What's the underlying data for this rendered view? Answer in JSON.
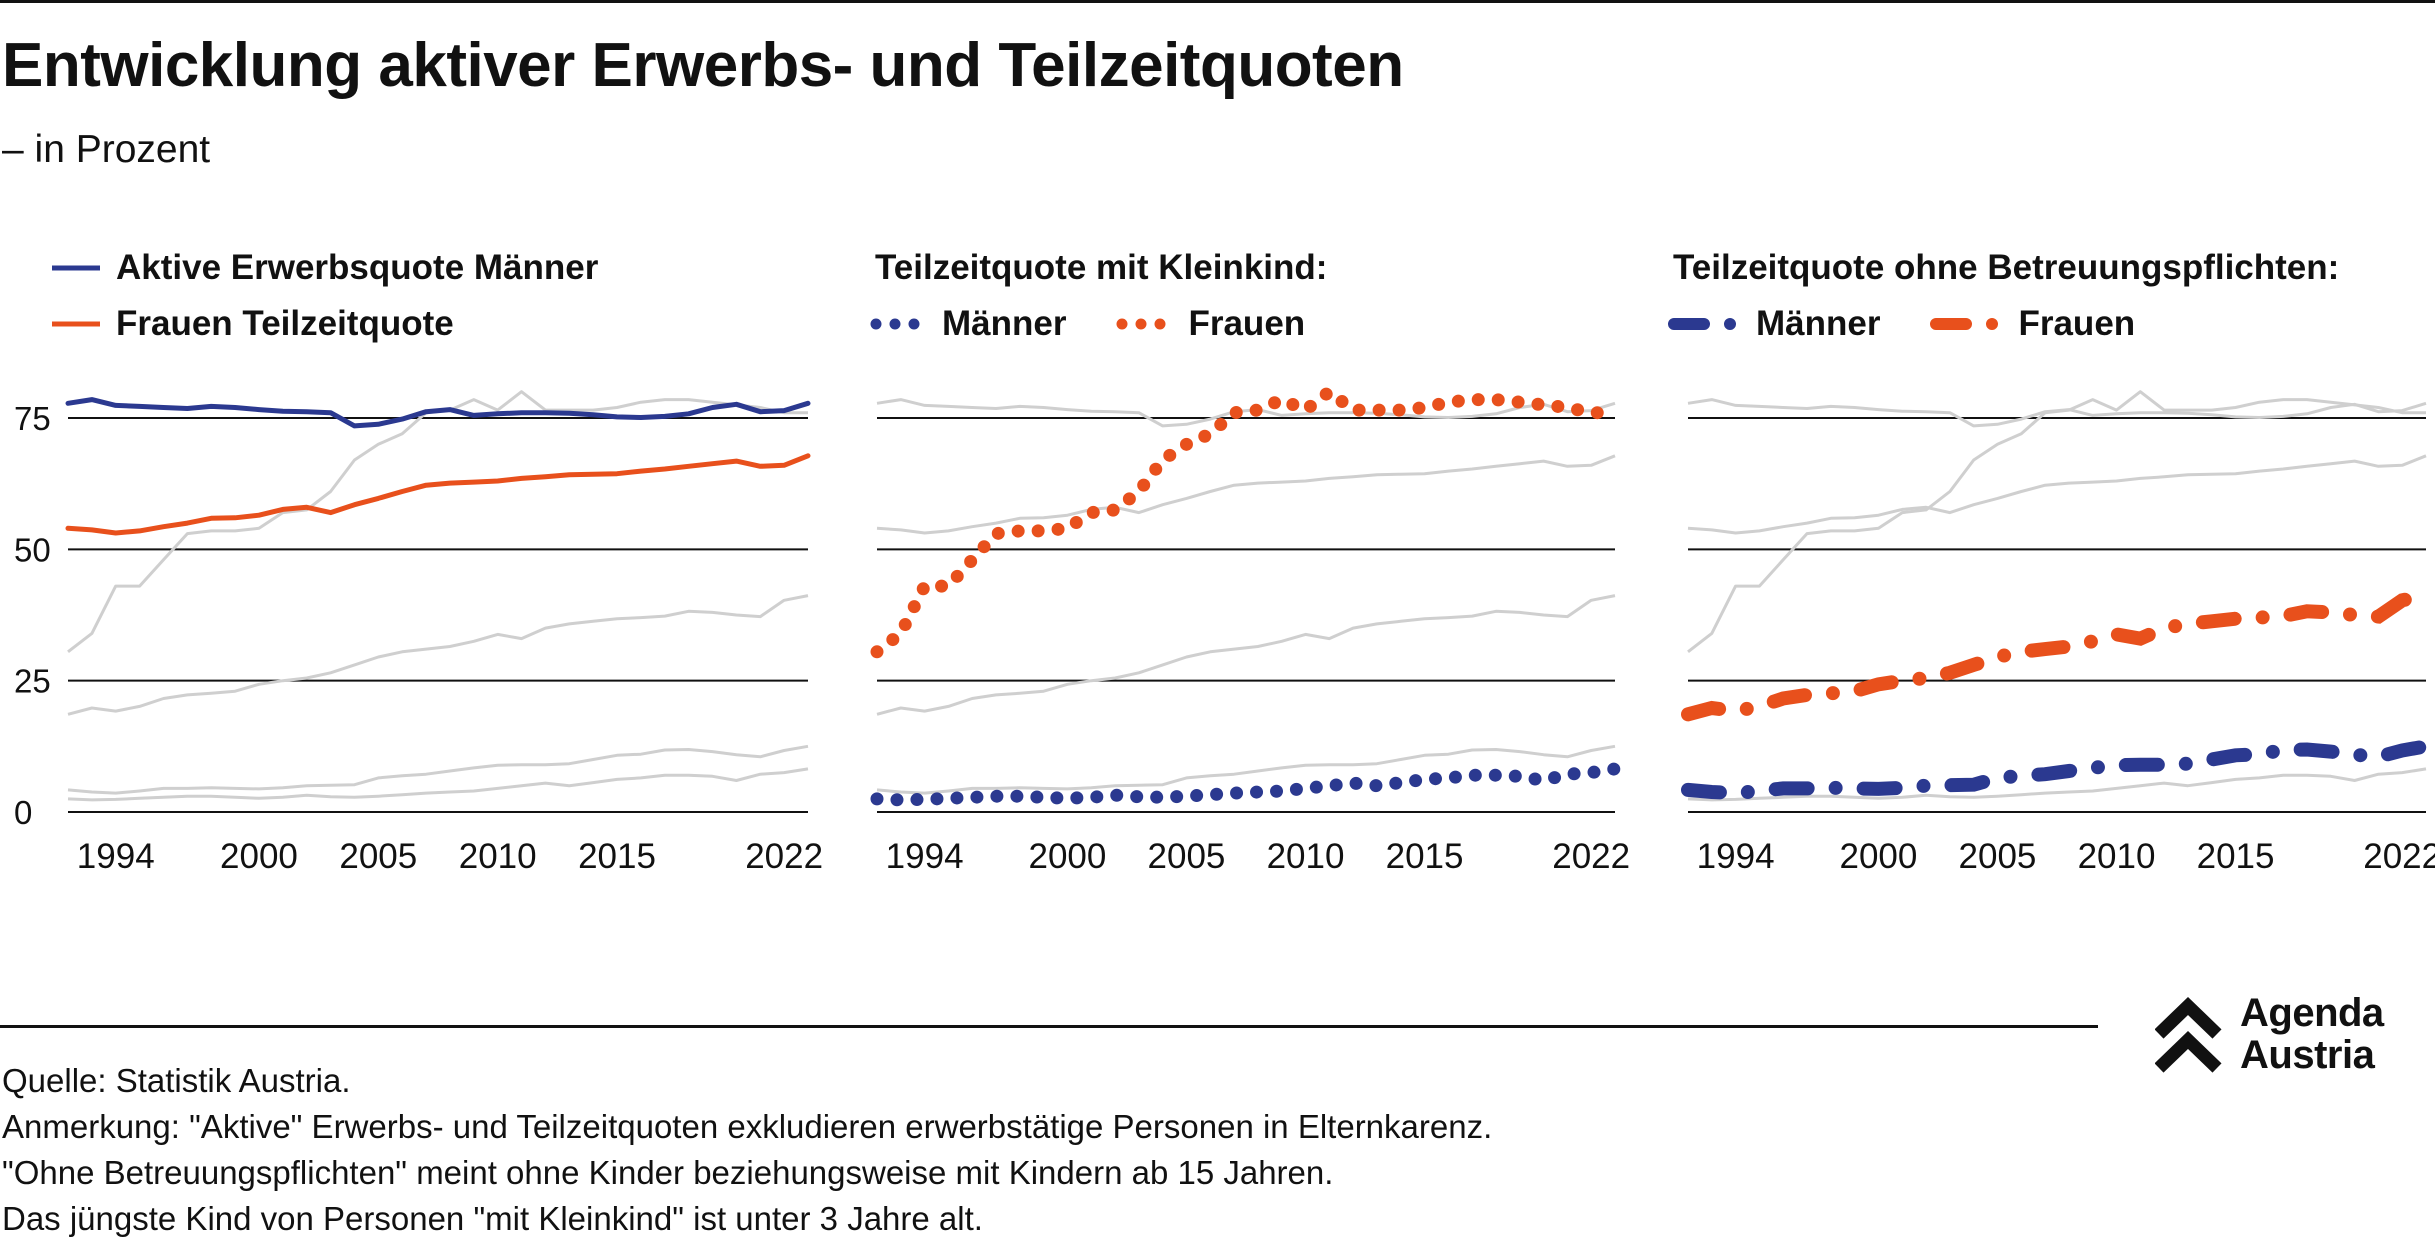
{
  "title": "Entwicklung aktiver Erwerbs- und Teilzeitquoten",
  "subtitle": "– in Prozent",
  "colors": {
    "blue": "#2b3990",
    "orange": "#e8501c",
    "grey": "#cfcfcf",
    "black": "#111111"
  },
  "panels": [
    {
      "legend": {
        "line1": "Aktive Erwerbsquote Männer",
        "line2": "Frauen Teilzeitquote"
      }
    },
    {
      "legend": {
        "heading": "Teilzeitquote mit Kleinkind:",
        "men": "Männer",
        "women": "Frauen"
      }
    },
    {
      "legend": {
        "heading": "Teilzeitquote ohne Betreuungspflichten:",
        "men": "Männer",
        "women": "Frauen"
      }
    }
  ],
  "chart_data": {
    "type": "line",
    "ylim": [
      0,
      80
    ],
    "yticks": [
      0,
      25,
      50,
      75
    ],
    "xticks": [
      1994,
      2000,
      2005,
      2010,
      2015,
      2022
    ],
    "xrange": [
      1992,
      2023
    ],
    "series": [
      {
        "name": "Aktive Erwerbsquote Männer",
        "values": [
          [
            1992,
            77.8
          ],
          [
            1993,
            78.5
          ],
          [
            1994,
            77.4
          ],
          [
            1995,
            77.2
          ],
          [
            1996,
            77
          ],
          [
            1997,
            76.8
          ],
          [
            1998,
            77.2
          ],
          [
            1999,
            77
          ],
          [
            2000,
            76.6
          ],
          [
            2001,
            76.3
          ],
          [
            2002,
            76.2
          ],
          [
            2003,
            76
          ],
          [
            2004,
            73.5
          ],
          [
            2005,
            73.8
          ],
          [
            2006,
            74.8
          ],
          [
            2007,
            76.2
          ],
          [
            2008,
            76.6
          ],
          [
            2009,
            75.5
          ],
          [
            2010,
            75.8
          ],
          [
            2011,
            76
          ],
          [
            2012,
            76
          ],
          [
            2013,
            75.9
          ],
          [
            2014,
            75.6
          ],
          [
            2015,
            75.2
          ],
          [
            2016,
            75.1
          ],
          [
            2017,
            75.3
          ],
          [
            2018,
            75.8
          ],
          [
            2019,
            77
          ],
          [
            2020,
            77.6
          ],
          [
            2021,
            76.2
          ],
          [
            2022,
            76.4
          ],
          [
            2023,
            77.8
          ]
        ]
      },
      {
        "name": "Frauen Teilzeitquote",
        "values": [
          [
            1992,
            54
          ],
          [
            1993,
            53.7
          ],
          [
            1994,
            53.1
          ],
          [
            1995,
            53.5
          ],
          [
            1996,
            54.3
          ],
          [
            1997,
            55
          ],
          [
            1998,
            55.9
          ],
          [
            1999,
            56
          ],
          [
            2000,
            56.5
          ],
          [
            2001,
            57.6
          ],
          [
            2002,
            58
          ],
          [
            2003,
            57
          ],
          [
            2004,
            58.5
          ],
          [
            2005,
            59.7
          ],
          [
            2006,
            61
          ],
          [
            2007,
            62.2
          ],
          [
            2008,
            62.6
          ],
          [
            2009,
            62.8
          ],
          [
            2010,
            63
          ],
          [
            2011,
            63.5
          ],
          [
            2012,
            63.8
          ],
          [
            2013,
            64.2
          ],
          [
            2014,
            64.3
          ],
          [
            2015,
            64.4
          ],
          [
            2016,
            64.9
          ],
          [
            2017,
            65.3
          ],
          [
            2018,
            65.8
          ],
          [
            2019,
            66.3
          ],
          [
            2020,
            66.8
          ],
          [
            2021,
            65.8
          ],
          [
            2022,
            66
          ],
          [
            2023,
            67.8
          ]
        ]
      },
      {
        "name": "Teilzeitquote mit Kleinkind Männer",
        "values": [
          [
            1992,
            2.5
          ],
          [
            1993,
            2.3
          ],
          [
            1994,
            2.4
          ],
          [
            1995,
            2.6
          ],
          [
            1996,
            2.8
          ],
          [
            1997,
            3
          ],
          [
            1998,
            3
          ],
          [
            1999,
            2.8
          ],
          [
            2000,
            2.6
          ],
          [
            2001,
            2.8
          ],
          [
            2002,
            3.2
          ],
          [
            2003,
            2.9
          ],
          [
            2004,
            2.8
          ],
          [
            2005,
            3
          ],
          [
            2006,
            3.3
          ],
          [
            2007,
            3.6
          ],
          [
            2008,
            3.8
          ],
          [
            2009,
            4
          ],
          [
            2010,
            4.5
          ],
          [
            2011,
            5
          ],
          [
            2012,
            5.5
          ],
          [
            2013,
            5
          ],
          [
            2014,
            5.6
          ],
          [
            2015,
            6.2
          ],
          [
            2016,
            6.5
          ],
          [
            2017,
            7
          ],
          [
            2018,
            7
          ],
          [
            2019,
            6.8
          ],
          [
            2020,
            6
          ],
          [
            2021,
            7.2
          ],
          [
            2022,
            7.5
          ],
          [
            2023,
            8.2
          ]
        ]
      },
      {
        "name": "Teilzeitquote mit Kleinkind Frauen",
        "values": [
          [
            1992,
            30.5
          ],
          [
            1993,
            34
          ],
          [
            1994,
            43
          ],
          [
            1995,
            43
          ],
          [
            1996,
            48
          ],
          [
            1997,
            53
          ],
          [
            1998,
            53.5
          ],
          [
            1999,
            53.5
          ],
          [
            2000,
            54
          ],
          [
            2001,
            57
          ],
          [
            2002,
            57.5
          ],
          [
            2003,
            61
          ],
          [
            2004,
            67
          ],
          [
            2005,
            70
          ],
          [
            2006,
            72
          ],
          [
            2007,
            76
          ],
          [
            2008,
            76.5
          ],
          [
            2009,
            78.5
          ],
          [
            2010,
            76.5
          ],
          [
            2011,
            80
          ],
          [
            2012,
            76.5
          ],
          [
            2013,
            76.5
          ],
          [
            2014,
            76.5
          ],
          [
            2015,
            77
          ],
          [
            2016,
            78
          ],
          [
            2017,
            78.5
          ],
          [
            2018,
            78.5
          ],
          [
            2019,
            78
          ],
          [
            2020,
            77.5
          ],
          [
            2021,
            77
          ],
          [
            2022,
            76
          ],
          [
            2023,
            76
          ]
        ]
      },
      {
        "name": "Teilzeitquote ohne Betreuungspflichten Männer",
        "values": [
          [
            1992,
            4.2
          ],
          [
            1993,
            3.8
          ],
          [
            1994,
            3.6
          ],
          [
            1995,
            4
          ],
          [
            1996,
            4.5
          ],
          [
            1997,
            4.5
          ],
          [
            1998,
            4.6
          ],
          [
            1999,
            4.5
          ],
          [
            2000,
            4.4
          ],
          [
            2001,
            4.6
          ],
          [
            2002,
            5
          ],
          [
            2003,
            5.1
          ],
          [
            2004,
            5.2
          ],
          [
            2005,
            6.5
          ],
          [
            2006,
            6.9
          ],
          [
            2007,
            7.2
          ],
          [
            2008,
            7.8
          ],
          [
            2009,
            8.4
          ],
          [
            2010,
            8.9
          ],
          [
            2011,
            9
          ],
          [
            2012,
            9
          ],
          [
            2013,
            9.2
          ],
          [
            2014,
            10
          ],
          [
            2015,
            10.8
          ],
          [
            2016,
            11
          ],
          [
            2017,
            11.8
          ],
          [
            2018,
            11.9
          ],
          [
            2019,
            11.5
          ],
          [
            2020,
            10.9
          ],
          [
            2021,
            10.5
          ],
          [
            2022,
            11.7
          ],
          [
            2023,
            12.5
          ]
        ]
      },
      {
        "name": "Teilzeitquote ohne Betreuungspflichten Frauen",
        "values": [
          [
            1992,
            18.6
          ],
          [
            1993,
            19.8
          ],
          [
            1994,
            19.2
          ],
          [
            1995,
            20.1
          ],
          [
            1996,
            21.6
          ],
          [
            1997,
            22.3
          ],
          [
            1998,
            22.6
          ],
          [
            1999,
            23
          ],
          [
            2000,
            24.3
          ],
          [
            2001,
            25
          ],
          [
            2002,
            25.5
          ],
          [
            2003,
            26.5
          ],
          [
            2004,
            28
          ],
          [
            2005,
            29.5
          ],
          [
            2006,
            30.5
          ],
          [
            2007,
            31
          ],
          [
            2008,
            31.5
          ],
          [
            2009,
            32.5
          ],
          [
            2010,
            33.8
          ],
          [
            2011,
            33
          ],
          [
            2012,
            35
          ],
          [
            2013,
            35.8
          ],
          [
            2014,
            36.3
          ],
          [
            2015,
            36.8
          ],
          [
            2016,
            37
          ],
          [
            2017,
            37.3
          ],
          [
            2018,
            38.2
          ],
          [
            2019,
            38
          ],
          [
            2020,
            37.5
          ],
          [
            2021,
            37.2
          ],
          [
            2022,
            40.3
          ],
          [
            2023,
            41.2
          ]
        ]
      }
    ]
  },
  "notes": {
    "source": "Quelle: Statistik Austria.",
    "note1": "Anmerkung: \"Aktive\" Erwerbs- und Teilzeitquoten exkludieren erwerbstätige Personen in Elternkarenz.",
    "note2": "\"Ohne Betreuungspflichten\" meint ohne Kinder beziehungsweise mit Kindern ab 15 Jahren.",
    "note3": "Das jüngste Kind von Personen \"mit Kleinkind\" ist unter 3 Jahre alt."
  },
  "logo": {
    "line1": "Agenda",
    "line2": "Austria"
  }
}
